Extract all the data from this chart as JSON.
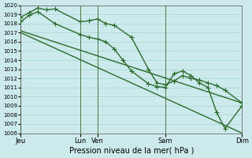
{
  "xlabel": "Pression niveau de la mer( hPa )",
  "background_color": "#cceaeb",
  "grid_color": "#a8d4d5",
  "line_color": "#2d6b2d",
  "ylim": [
    1006,
    1020
  ],
  "xlim": [
    0,
    13
  ],
  "ytick_interval": 1,
  "xtick_positions": [
    0,
    3.5,
    4.5,
    8.5,
    13
  ],
  "xtick_labels": [
    "Jeu",
    "Lun",
    "Ven",
    "Sam",
    "Dim"
  ],
  "vline_positions": [
    0,
    3.5,
    4.5,
    8.5,
    13
  ],
  "series": [
    {
      "x": [
        0,
        0.5,
        1.0,
        1.5,
        2.0,
        3.5,
        4.0,
        4.5,
        5.0,
        5.5,
        6.5,
        7.5,
        8.0,
        8.5,
        9.0,
        9.5,
        10.0,
        10.5,
        11.0,
        11.5,
        12.0,
        13.0
      ],
      "y": [
        1018.7,
        1019.2,
        1019.7,
        1019.5,
        1019.6,
        1018.2,
        1018.3,
        1018.5,
        1018.0,
        1017.8,
        1016.5,
        1013.0,
        1011.5,
        1011.3,
        1011.7,
        1012.3,
        1012.0,
        1011.8,
        1011.5,
        1011.2,
        1010.7,
        1009.3
      ],
      "marker": "+",
      "markersize": 4,
      "linewidth": 1.0
    },
    {
      "x": [
        0,
        0.5,
        1.0,
        2.0,
        3.5,
        4.0,
        4.5,
        5.0,
        5.5,
        6.0,
        6.5,
        7.5,
        8.0,
        8.5,
        9.0,
        9.5,
        10.0,
        10.5,
        11.0,
        11.5,
        12.0,
        13.0
      ],
      "y": [
        1018.2,
        1018.9,
        1019.3,
        1018.0,
        1016.8,
        1016.5,
        1016.3,
        1016.0,
        1015.2,
        1014.0,
        1012.8,
        1011.4,
        1011.1,
        1011.0,
        1012.5,
        1012.8,
        1012.3,
        1011.5,
        1011.0,
        1008.3,
        1006.5,
        1009.0
      ],
      "marker": "+",
      "markersize": 4,
      "linewidth": 1.0
    },
    {
      "x": [
        0,
        13
      ],
      "y": [
        1017.2,
        1009.3
      ],
      "marker": null,
      "markersize": 0,
      "linewidth": 1.0
    },
    {
      "x": [
        0,
        13
      ],
      "y": [
        1017.0,
        1006.0
      ],
      "marker": null,
      "markersize": 0,
      "linewidth": 1.0
    }
  ]
}
